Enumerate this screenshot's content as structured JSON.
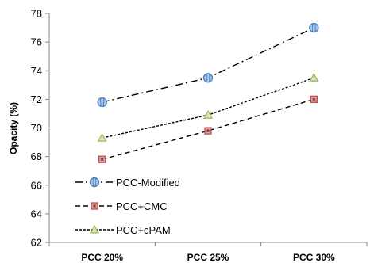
{
  "chart_data": {
    "type": "line",
    "categories": [
      "PCC 20%",
      "PCC 25%",
      "PCC 30%"
    ],
    "ylabel": "Opacity (%)",
    "ylim": [
      62,
      78
    ],
    "yticks": [
      62,
      64,
      66,
      68,
      70,
      72,
      74,
      76,
      78
    ],
    "grid": false,
    "legend_position": "bottom-left",
    "series": [
      {
        "name": "PCC-Modified",
        "values": [
          71.8,
          73.5,
          77.0
        ],
        "marker": "circle",
        "line_style": "dash-dot",
        "marker_fill": "#a9c8ea",
        "marker_stroke": "#4a7ebb"
      },
      {
        "name": "PCC+CMC",
        "values": [
          67.8,
          69.8,
          72.0
        ],
        "marker": "square",
        "line_style": "dashed",
        "marker_fill": "#d9a1a1",
        "marker_stroke": "#c0504d"
      },
      {
        "name": "PCC+cPAM",
        "values": [
          69.3,
          70.9,
          73.5
        ],
        "marker": "triangle",
        "line_style": "dotted",
        "marker_fill": "#d7e4bd",
        "marker_stroke": "#9bbb59"
      }
    ]
  }
}
